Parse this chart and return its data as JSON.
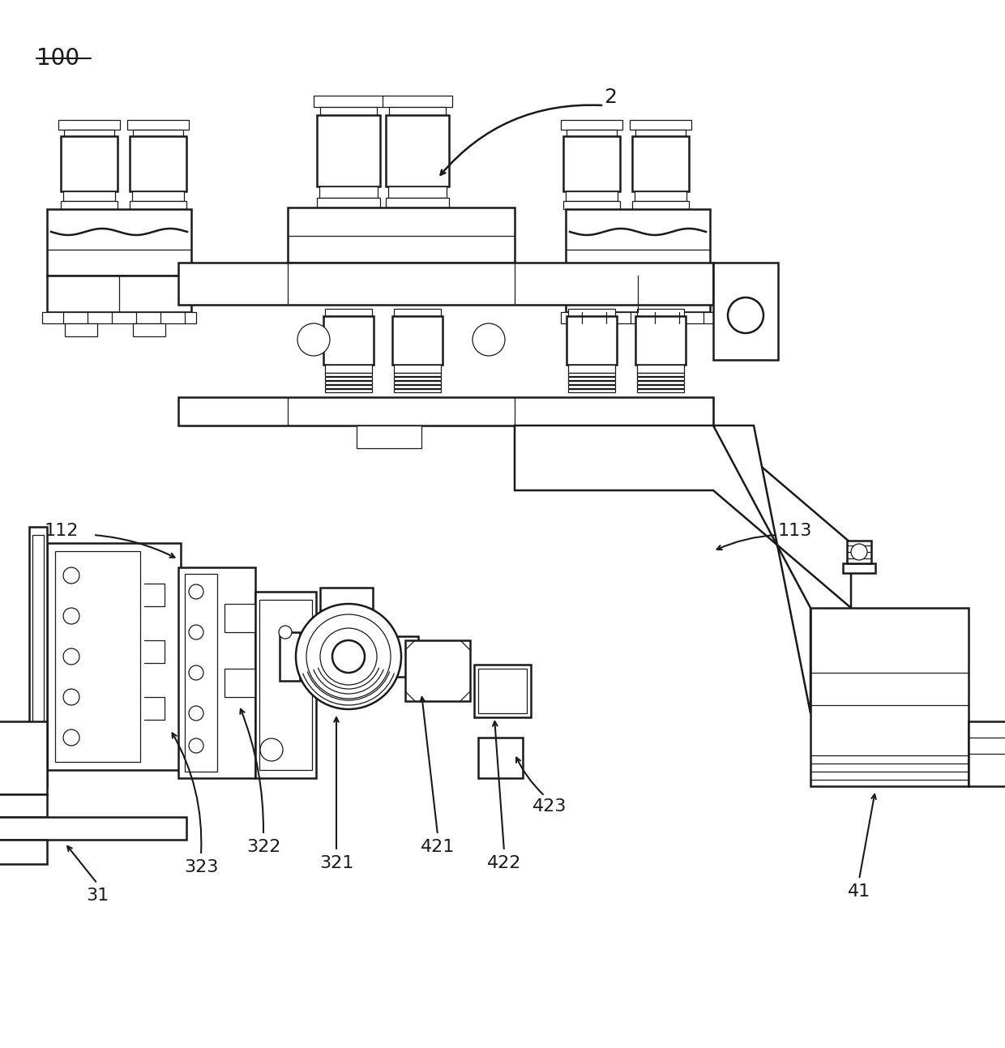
{
  "bg_color": "#ffffff",
  "lc": "#1a1a1a",
  "lw": 1.8,
  "tlw": 0.9,
  "fig_w": 12.4,
  "fig_h": 12.93,
  "dpi": 100
}
